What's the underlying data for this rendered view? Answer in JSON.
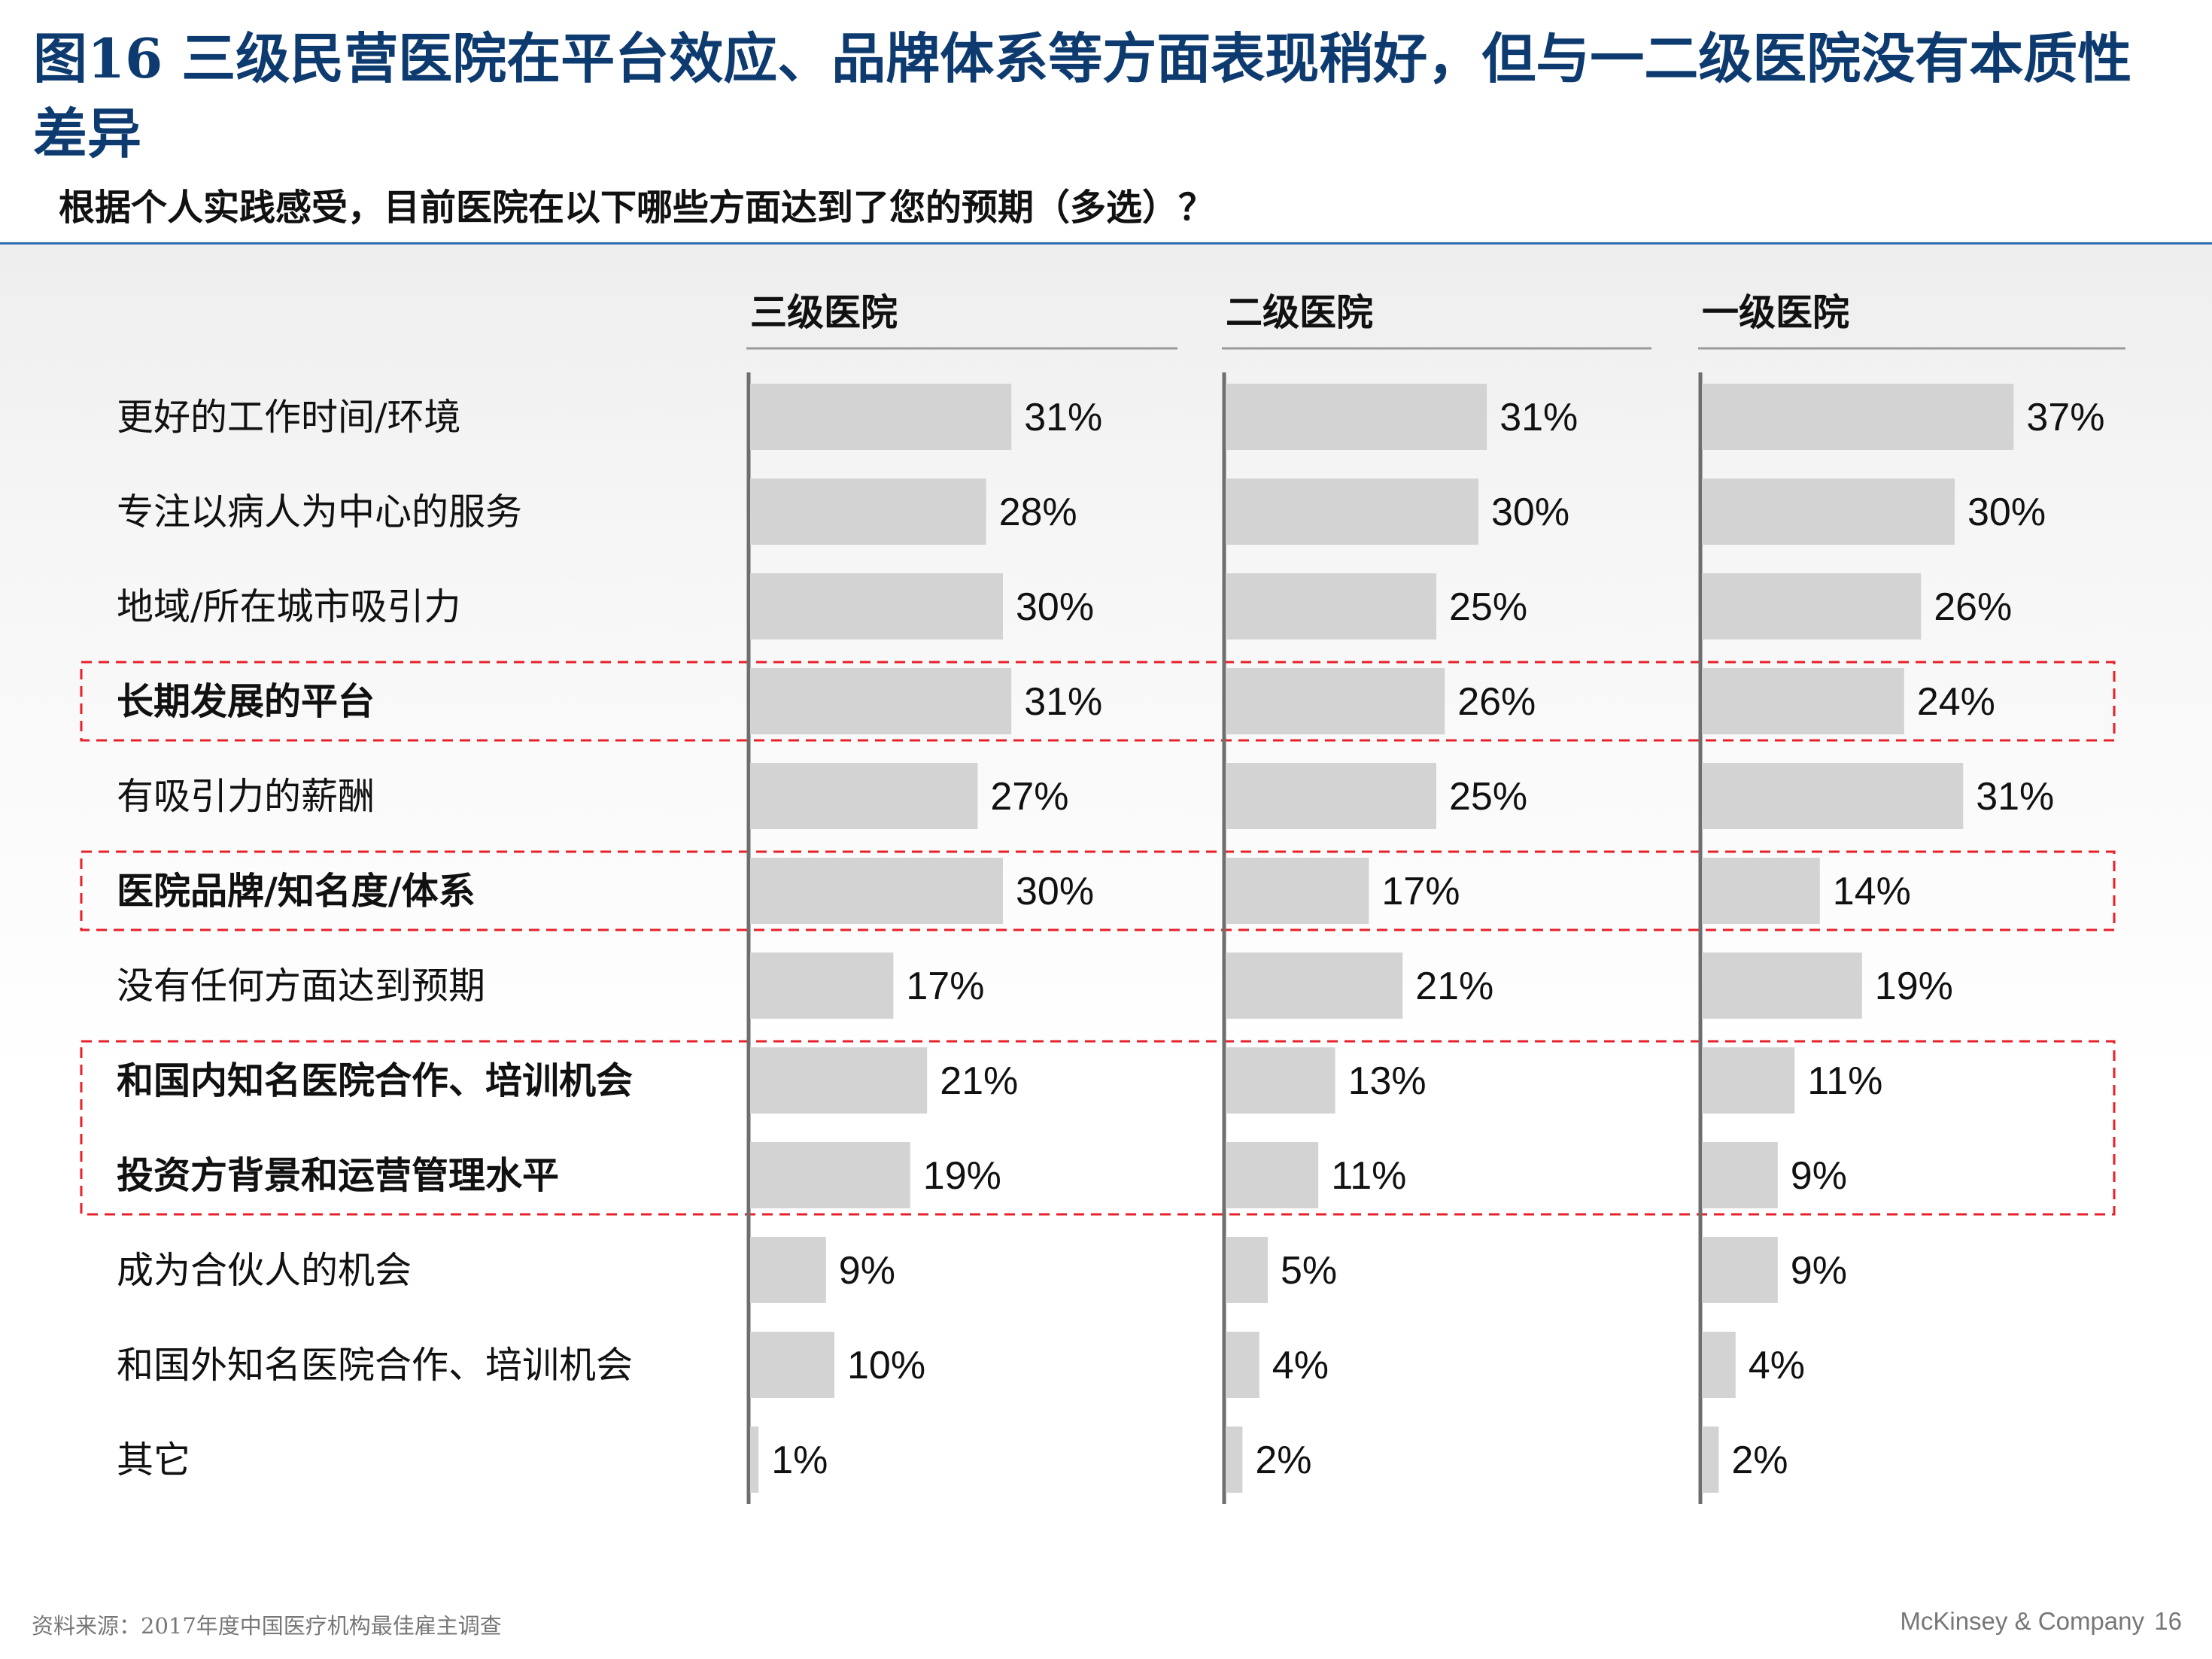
{
  "title": "图16 三级民营医院在平台效应、品牌体系等方面表现稍好，但与一二级医院没有本质性差异",
  "subtitle": "根据个人实践感受，目前医院在以下哪些方面达到了您的预期（多选）？",
  "footer": {
    "source": "资料来源：2017年度中国医疗机构最佳雇主调查",
    "brand": "McKinsey & Company",
    "page": "16"
  },
  "colors": {
    "title": "#0e3b6f",
    "bar": "#d3d3d3",
    "axis": "#6e6e6e",
    "highlight_box": "#e8202a",
    "header_rule": "#2f6fb0"
  },
  "chart_data": {
    "type": "bar",
    "orientation": "horizontal",
    "value_suffix": "%",
    "categories": [
      "更好的工作时间/环境",
      "专注以病人为中心的服务",
      "地域/所在城市吸引力",
      "长期发展的平台",
      "有吸引力的薪酬",
      "医院品牌/知名度/体系",
      "没有任何方面达到预期",
      "和国内知名医院合作、培训机会",
      "投资方背景和运营管理水平",
      "成为合伙人的机会",
      "和国外知名医院合作、培训机会",
      "其它"
    ],
    "bold_categories": [
      3,
      5,
      7,
      8
    ],
    "highlight_groups": [
      [
        3
      ],
      [
        5
      ],
      [
        7,
        8
      ]
    ],
    "series": [
      {
        "name": "三级医院",
        "values": [
          31,
          28,
          30,
          31,
          27,
          30,
          17,
          21,
          19,
          9,
          10,
          1
        ]
      },
      {
        "name": "二级医院",
        "values": [
          31,
          30,
          25,
          26,
          25,
          17,
          21,
          13,
          11,
          5,
          4,
          2
        ]
      },
      {
        "name": "一级医院",
        "values": [
          37,
          30,
          26,
          24,
          31,
          14,
          19,
          11,
          9,
          9,
          4,
          2
        ]
      }
    ],
    "xlim": [
      0,
      40
    ],
    "legend": "column-headers"
  }
}
